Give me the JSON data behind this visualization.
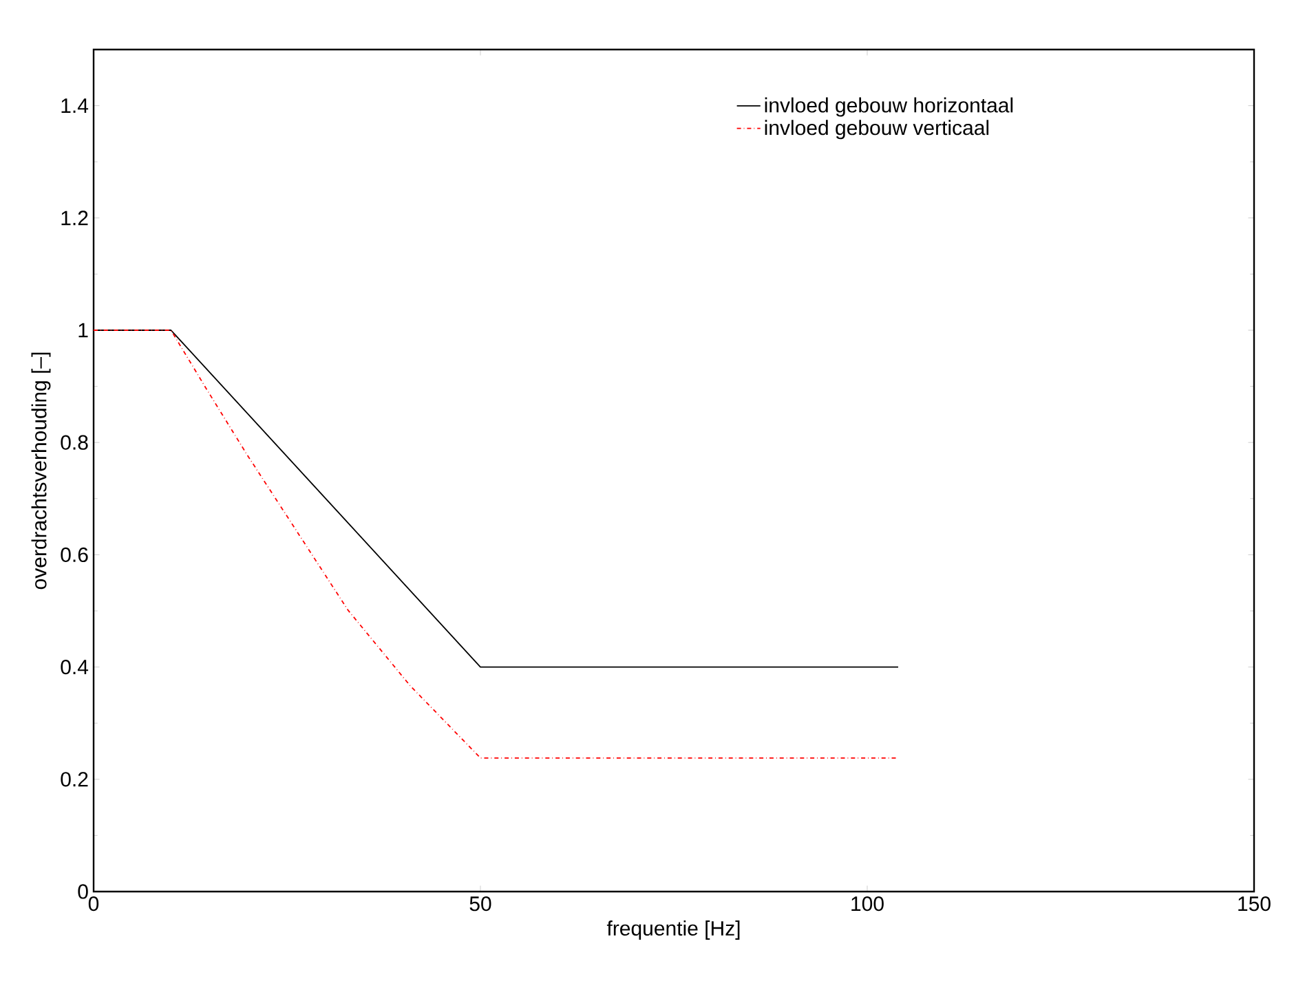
{
  "chart_data": {
    "type": "line",
    "xlabel": "frequentie [Hz]",
    "ylabel": "overdrachtsverhouding [–]",
    "xlim": [
      0,
      150
    ],
    "ylim": [
      0,
      1.5
    ],
    "xticks": [
      0,
      50,
      100,
      150
    ],
    "yticks": [
      0,
      0.2,
      0.4,
      0.6,
      0.8,
      1,
      1.2,
      1.4
    ],
    "legend": "top right",
    "marker": "none",
    "series": [
      {
        "name": "invloed gebouw horizontaal",
        "color": "#000000",
        "line_style": "solid",
        "x": [
          0,
          10,
          50,
          104
        ],
        "values": [
          1,
          1,
          0.4,
          0.4
        ]
      },
      {
        "name": "invloed gebouw verticaal",
        "color": "#ff0000",
        "line_style": "dotted",
        "x": [
          0,
          10,
          14.6,
          19.8,
          32.9,
          40.9,
          50,
          104
        ],
        "values": [
          1,
          1,
          0.895,
          0.779,
          0.501,
          0.367,
          0.238,
          0.238
        ]
      }
    ]
  }
}
